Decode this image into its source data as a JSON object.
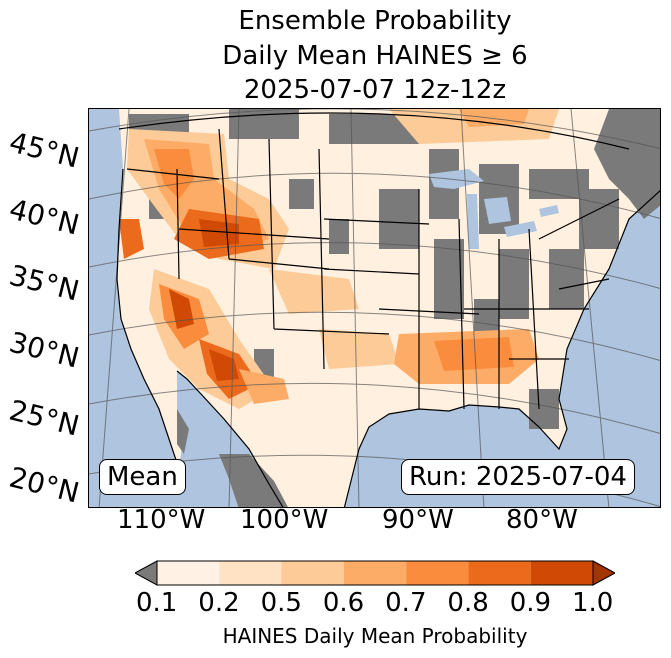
{
  "title": {
    "line1": "Ensemble Probability",
    "line2": "Daily Mean HAINES ≥ 6",
    "line3": "2025-07-07 12z-12z"
  },
  "map": {
    "region": "Continental United States",
    "ocean_color": "#aec4df",
    "no_data_color": "#7a7a7a",
    "latitude_labels": [
      "45°N",
      "40°N",
      "35°N",
      "30°N",
      "25°N",
      "20°N"
    ],
    "longitude_labels": [
      "110°W",
      "100°W",
      "90°W",
      "80°W"
    ],
    "stat_label": "Mean",
    "run_label": "Run: 2025-07-04"
  },
  "colorbar": {
    "label": "HAINES Daily Mean Probability",
    "ticks": [
      "0.1",
      "0.2",
      "0.5",
      "0.6",
      "0.7",
      "0.8",
      "0.9",
      "1.0"
    ],
    "bins": [
      {
        "from": 0.1,
        "to": 0.2,
        "color": "#fff2e5"
      },
      {
        "from": 0.2,
        "to": 0.5,
        "color": "#fee2c3"
      },
      {
        "from": 0.5,
        "to": 0.6,
        "color": "#fdcb97"
      },
      {
        "from": 0.6,
        "to": 0.7,
        "color": "#fdac67"
      },
      {
        "from": 0.7,
        "to": 0.8,
        "color": "#f98d3d"
      },
      {
        "from": 0.8,
        "to": 0.9,
        "color": "#eb6a1b"
      },
      {
        "from": 0.9,
        "to": 1.0,
        "color": "#d04a05"
      }
    ],
    "under_color": "#7a7a7a",
    "over_color": "#a33503"
  }
}
